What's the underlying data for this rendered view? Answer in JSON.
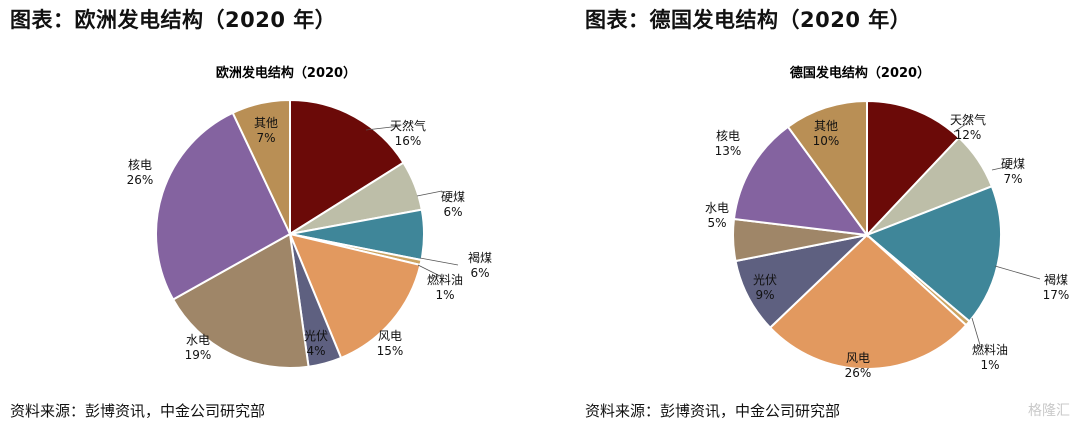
{
  "left_panel": {
    "figure_title": "图表：欧洲发电结构（2020 年）",
    "source": "资料来源：彭博资讯，中金公司研究部"
  },
  "right_panel": {
    "figure_title": "图表：德国发电结构（2020 年）",
    "source": "资料来源：彭博资讯，中金公司研究部"
  },
  "watermark": "格隆汇",
  "chart_data": [
    {
      "type": "pie",
      "title": "欧洲发电结构（2020）",
      "slices": [
        {
          "name": "天然气",
          "label": "16%",
          "value": 16,
          "color": "#6B0A08"
        },
        {
          "name": "硬煤",
          "label": "6%",
          "value": 6,
          "color": "#BDBEA8"
        },
        {
          "name": "褐煤",
          "label": "6%",
          "value": 6,
          "color": "#3F8699"
        },
        {
          "name": "燃料油",
          "label": "1%",
          "value": 0.6,
          "color": "#CBA462"
        },
        {
          "name": "风电",
          "label": "15%",
          "value": 15,
          "color": "#E2995F"
        },
        {
          "name": "光伏",
          "label": "4%",
          "value": 4,
          "color": "#5E6080"
        },
        {
          "name": "水电",
          "label": "19%",
          "value": 19,
          "color": "#9F8668"
        },
        {
          "name": "核电",
          "label": "26%",
          "value": 26,
          "color": "#8463A0"
        },
        {
          "name": "其他",
          "label": "7%",
          "value": 7,
          "color": "#B98F55"
        }
      ]
    },
    {
      "type": "pie",
      "title": "德国发电结构（2020）",
      "slices": [
        {
          "name": "天然气",
          "label": "12%",
          "value": 12,
          "color": "#6B0A08"
        },
        {
          "name": "硬煤",
          "label": "7%",
          "value": 7,
          "color": "#BDBEA8"
        },
        {
          "name": "褐煤",
          "label": "17%",
          "value": 17,
          "color": "#3F8699"
        },
        {
          "name": "燃料油",
          "label": "1%",
          "value": 0.6,
          "color": "#CBA462"
        },
        {
          "name": "风电",
          "label": "26%",
          "value": 26,
          "color": "#E2995F"
        },
        {
          "name": "光伏",
          "label": "9%",
          "value": 9,
          "color": "#5E6080"
        },
        {
          "name": "水电",
          "label": "5%",
          "value": 5,
          "color": "#9F8668"
        },
        {
          "name": "核电",
          "label": "13%",
          "value": 13,
          "color": "#8463A0"
        },
        {
          "name": "其他",
          "label": "10%",
          "value": 10,
          "color": "#B98F55"
        }
      ]
    }
  ]
}
